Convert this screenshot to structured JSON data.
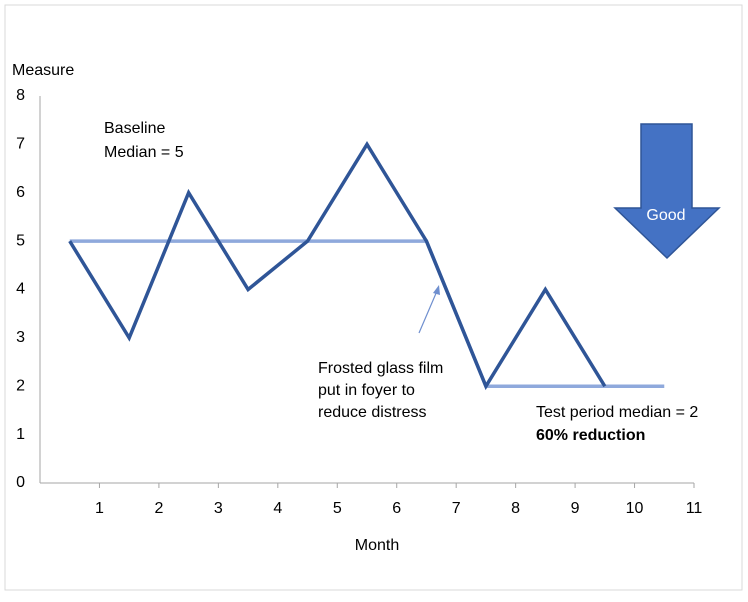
{
  "chart_data": {
    "type": "line",
    "y_label": "Measure",
    "x_label": "Month",
    "xlim": [
      0,
      11
    ],
    "ylim": [
      0,
      8
    ],
    "xticks": [
      1,
      2,
      3,
      4,
      5,
      6,
      7,
      8,
      9,
      10,
      11
    ],
    "yticks": [
      0,
      1,
      2,
      3,
      4,
      5,
      6,
      7,
      8
    ],
    "grid": false,
    "series": [
      {
        "color": "#2f5597",
        "x": [
          0.5,
          1.5,
          2.5,
          3.5,
          4.5,
          5.5,
          6.5,
          7.5,
          8.5,
          9.5
        ],
        "values": [
          5,
          3,
          6,
          4,
          5,
          7,
          5,
          2,
          4,
          2
        ]
      },
      {
        "color": "#8fa9dc",
        "x": [
          0.5,
          6.5,
          7.5,
          10.5
        ],
        "values": [
          5,
          5,
          2,
          2
        ]
      }
    ],
    "annotations": {
      "baseline": [
        "Baseline",
        "Median = 5"
      ],
      "intervention": [
        "Frosted glass film",
        "put in foyer to",
        "reduce distress"
      ],
      "test_period": "Test period median = 2",
      "reduction": "60% reduction",
      "direction": "Good"
    }
  }
}
